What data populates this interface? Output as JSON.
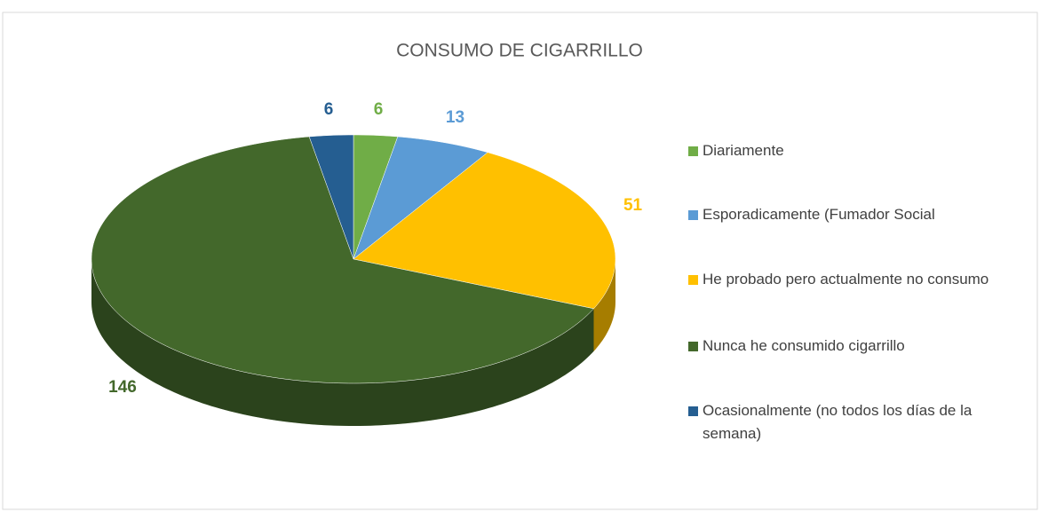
{
  "chart_data": {
    "type": "pie",
    "title": "CONSUMO DE CIGARRILLO",
    "categories": [
      "Diariamente",
      "Esporadicamente (Fumador Social",
      "He probado pero actualmente no consumo",
      "Nunca he consumido cigarrillo",
      "Ocasionalmente (no todos los días de la semana)"
    ],
    "values": [
      6,
      13,
      51,
      146,
      6
    ],
    "colors": [
      "#70ad47",
      "#5b9bd5",
      "#ffc000",
      "#43682b",
      "#255e91"
    ],
    "legend": "right"
  }
}
